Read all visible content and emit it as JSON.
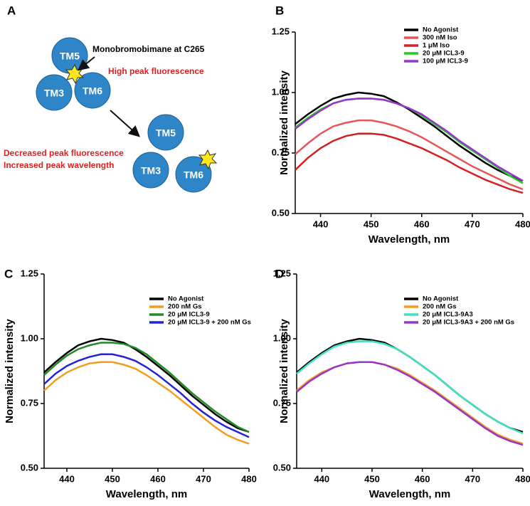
{
  "diagram": {
    "label": "A",
    "nodes": [
      {
        "label": "TM5"
      },
      {
        "label": "TM3"
      },
      {
        "label": "TM6"
      },
      {
        "label": "TM5"
      },
      {
        "label": "TM3"
      },
      {
        "label": "TM6"
      }
    ],
    "annotations": [
      "Monobromobimane at C265",
      "High peak fluorescence",
      "Decreased peak fluorescence",
      "Increased peak wavelength"
    ]
  },
  "chart_data": [
    {
      "type": "line",
      "panel": "B",
      "xlabel": "Wavelength, nm",
      "ylabel": "Normalized intensity",
      "x": [
        435,
        437.5,
        440,
        442.5,
        445,
        447.5,
        450,
        452.5,
        455,
        457.5,
        460,
        462.5,
        465,
        467.5,
        470,
        472.5,
        475,
        477.5,
        480
      ],
      "xlim": [
        435,
        480
      ],
      "xticks": [
        440,
        450,
        460,
        470,
        480
      ],
      "ylim": [
        0.5,
        1.25
      ],
      "yticks": [
        {
          "value": 0.5,
          "label": "0.50"
        },
        {
          "value": 0.75,
          "label": "0.75"
        },
        {
          "value": 1.0,
          "label": "1.00"
        },
        {
          "value": 1.25,
          "label": "1.25"
        }
      ],
      "series": [
        {
          "name": "No Agonist",
          "color": "#000000",
          "values": [
            0.87,
            0.91,
            0.945,
            0.975,
            0.99,
            1.0,
            0.995,
            0.985,
            0.96,
            0.93,
            0.895,
            0.86,
            0.82,
            0.78,
            0.745,
            0.71,
            0.68,
            0.655,
            0.635
          ]
        },
        {
          "name": "300 nM Iso",
          "color": "#e85555",
          "values": [
            0.745,
            0.79,
            0.83,
            0.86,
            0.875,
            0.885,
            0.885,
            0.875,
            0.86,
            0.84,
            0.815,
            0.785,
            0.755,
            0.725,
            0.695,
            0.67,
            0.645,
            0.62,
            0.6
          ]
        },
        {
          "name": "1 μM Iso",
          "color": "#d42020",
          "values": [
            0.68,
            0.73,
            0.77,
            0.8,
            0.82,
            0.83,
            0.83,
            0.825,
            0.81,
            0.79,
            0.77,
            0.745,
            0.72,
            0.69,
            0.665,
            0.64,
            0.62,
            0.6,
            0.585
          ]
        },
        {
          "name": "20 μM ICL3-9",
          "color": "#22cc22",
          "values": [
            0.855,
            0.895,
            0.93,
            0.955,
            0.97,
            0.975,
            0.975,
            0.97,
            0.955,
            0.935,
            0.905,
            0.87,
            0.835,
            0.795,
            0.76,
            0.725,
            0.69,
            0.655,
            0.625
          ]
        },
        {
          "name": "100 μM ICL3-9",
          "color": "#9933cc",
          "values": [
            0.85,
            0.89,
            0.925,
            0.955,
            0.97,
            0.975,
            0.975,
            0.97,
            0.955,
            0.935,
            0.91,
            0.875,
            0.84,
            0.8,
            0.765,
            0.73,
            0.695,
            0.665,
            0.635
          ]
        }
      ]
    },
    {
      "type": "line",
      "panel": "C",
      "xlabel": "Wavelength, nm",
      "ylabel": "Normalized intensity",
      "x": [
        435,
        437.5,
        440,
        442.5,
        445,
        447.5,
        450,
        452.5,
        455,
        457.5,
        460,
        462.5,
        465,
        467.5,
        470,
        472.5,
        475,
        477.5,
        480
      ],
      "xlim": [
        435,
        480
      ],
      "xticks": [
        440,
        450,
        460,
        470,
        480
      ],
      "ylim": [
        0.5,
        1.25
      ],
      "yticks": [
        {
          "value": 0.5,
          "label": "0.50"
        },
        {
          "value": 0.75,
          "label": "0.75"
        },
        {
          "value": 1.0,
          "label": "1.00"
        },
        {
          "value": 1.25,
          "label": "1.25"
        }
      ],
      "series": [
        {
          "name": "No Agonist",
          "color": "#000000",
          "values": [
            0.87,
            0.91,
            0.945,
            0.975,
            0.99,
            1.0,
            0.995,
            0.985,
            0.96,
            0.93,
            0.895,
            0.86,
            0.82,
            0.78,
            0.745,
            0.71,
            0.68,
            0.655,
            0.64
          ]
        },
        {
          "name": "200 nM Gs",
          "color": "#f39c1e",
          "values": [
            0.8,
            0.84,
            0.87,
            0.89,
            0.905,
            0.91,
            0.91,
            0.9,
            0.885,
            0.86,
            0.83,
            0.8,
            0.765,
            0.73,
            0.695,
            0.66,
            0.63,
            0.61,
            0.595
          ]
        },
        {
          "name": "20 μM ICL3-9",
          "color": "#228b22",
          "values": [
            0.86,
            0.9,
            0.935,
            0.96,
            0.975,
            0.985,
            0.985,
            0.98,
            0.965,
            0.94,
            0.905,
            0.87,
            0.83,
            0.79,
            0.755,
            0.72,
            0.69,
            0.66,
            0.64
          ]
        },
        {
          "name": "20 μM ICL3-9 + 200 nM Gs",
          "color": "#2222dd",
          "values": [
            0.825,
            0.865,
            0.895,
            0.915,
            0.93,
            0.94,
            0.94,
            0.93,
            0.915,
            0.89,
            0.86,
            0.825,
            0.79,
            0.75,
            0.715,
            0.685,
            0.66,
            0.64,
            0.62
          ]
        }
      ]
    },
    {
      "type": "line",
      "panel": "D",
      "xlabel": "Wavelength, nm",
      "ylabel": "Normalized intensity",
      "x": [
        435,
        437.5,
        440,
        442.5,
        445,
        447.5,
        450,
        452.5,
        455,
        457.5,
        460,
        462.5,
        465,
        467.5,
        470,
        472.5,
        475,
        477.5,
        480
      ],
      "xlim": [
        435,
        480
      ],
      "xticks": [
        440,
        450,
        460,
        470,
        480
      ],
      "ylim": [
        0.5,
        1.25
      ],
      "yticks": [
        {
          "value": 0.5,
          "label": "0.50"
        },
        {
          "value": 0.75,
          "label": "0.75"
        },
        {
          "value": 1.0,
          "label": "1.00"
        },
        {
          "value": 1.25,
          "label": "1.25"
        }
      ],
      "series": [
        {
          "name": "No Agonist",
          "color": "#000000",
          "values": [
            0.87,
            0.91,
            0.945,
            0.975,
            0.99,
            1.0,
            0.995,
            0.985,
            0.96,
            0.93,
            0.895,
            0.86,
            0.82,
            0.78,
            0.745,
            0.71,
            0.68,
            0.655,
            0.64
          ]
        },
        {
          "name": "200 nM Gs",
          "color": "#f39c1e",
          "values": [
            0.8,
            0.84,
            0.87,
            0.89,
            0.905,
            0.91,
            0.91,
            0.9,
            0.885,
            0.86,
            0.83,
            0.8,
            0.765,
            0.73,
            0.695,
            0.66,
            0.63,
            0.61,
            0.595
          ]
        },
        {
          "name": "20 μM ICL3-9A3",
          "color": "#40e0c0",
          "values": [
            0.865,
            0.905,
            0.94,
            0.97,
            0.985,
            0.99,
            0.99,
            0.98,
            0.96,
            0.93,
            0.895,
            0.86,
            0.82,
            0.78,
            0.745,
            0.71,
            0.68,
            0.655,
            0.635
          ]
        },
        {
          "name": "20 μM ICL3-9A3 + 200 nM Gs",
          "color": "#9933cc",
          "values": [
            0.795,
            0.835,
            0.865,
            0.89,
            0.905,
            0.91,
            0.91,
            0.9,
            0.88,
            0.855,
            0.825,
            0.795,
            0.76,
            0.725,
            0.69,
            0.655,
            0.625,
            0.605,
            0.59
          ]
        }
      ]
    }
  ]
}
